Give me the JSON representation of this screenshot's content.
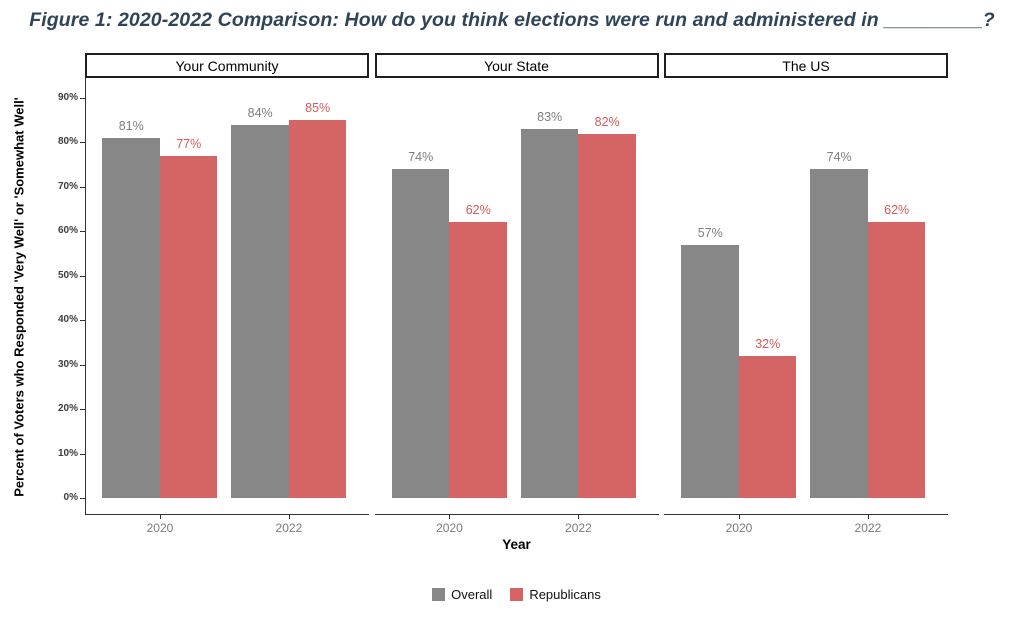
{
  "colors": {
    "title": "#2F4459",
    "axis": "#333333",
    "tick_label": "#3D3D3D",
    "year_label": "#7B7B7B",
    "strip_border": "#1F1F1F",
    "strip_text": "#000000",
    "legend_text": "#111111",
    "background": "#FFFFFF"
  },
  "chart_data": {
    "type": "bar",
    "title": "Figure 1: 2020-2022 Comparison: How do you think elections were run and administered in _________?",
    "xlabel": "Year",
    "ylabel": "Percent of Voters who Responded 'Very Well' or 'Somewhat Well'",
    "ylim": [
      0,
      95
    ],
    "grid": false,
    "legend_position": "bottom",
    "yticks": [
      {
        "value": 0,
        "label": "0%"
      },
      {
        "value": 10,
        "label": "10%"
      },
      {
        "value": 20,
        "label": "20%"
      },
      {
        "value": 30,
        "label": "30%"
      },
      {
        "value": 40,
        "label": "40%"
      },
      {
        "value": 50,
        "label": "50%"
      },
      {
        "value": 60,
        "label": "60%"
      },
      {
        "value": 70,
        "label": "70%"
      },
      {
        "value": 80,
        "label": "80%"
      },
      {
        "value": 90,
        "label": "90%"
      }
    ],
    "categories": [
      "2020",
      "2022"
    ],
    "facets": [
      {
        "label": "Your Community",
        "series": [
          {
            "name": "Overall",
            "values": [
              81,
              84
            ],
            "labels": [
              "81%",
              "84%"
            ]
          },
          {
            "name": "Republicans",
            "values": [
              77,
              85
            ],
            "labels": [
              "77%",
              "85%"
            ]
          }
        ]
      },
      {
        "label": "Your State",
        "series": [
          {
            "name": "Overall",
            "values": [
              74,
              83
            ],
            "labels": [
              "74%",
              "83%"
            ]
          },
          {
            "name": "Republicans",
            "values": [
              62,
              82
            ],
            "labels": [
              "62%",
              "82%"
            ]
          }
        ]
      },
      {
        "label": "The US",
        "series": [
          {
            "name": "Overall",
            "values": [
              57,
              74
            ],
            "labels": [
              "57%",
              "74%"
            ]
          },
          {
            "name": "Republicans",
            "values": [
              32,
              62
            ],
            "labels": [
              "32%",
              "62%"
            ]
          }
        ]
      }
    ],
    "legend": [
      {
        "label": "Overall",
        "color": "#878787",
        "label_color": "#7E7E7E"
      },
      {
        "label": "Republicans",
        "color": "#D56565",
        "label_color": "#D4595B"
      }
    ]
  }
}
